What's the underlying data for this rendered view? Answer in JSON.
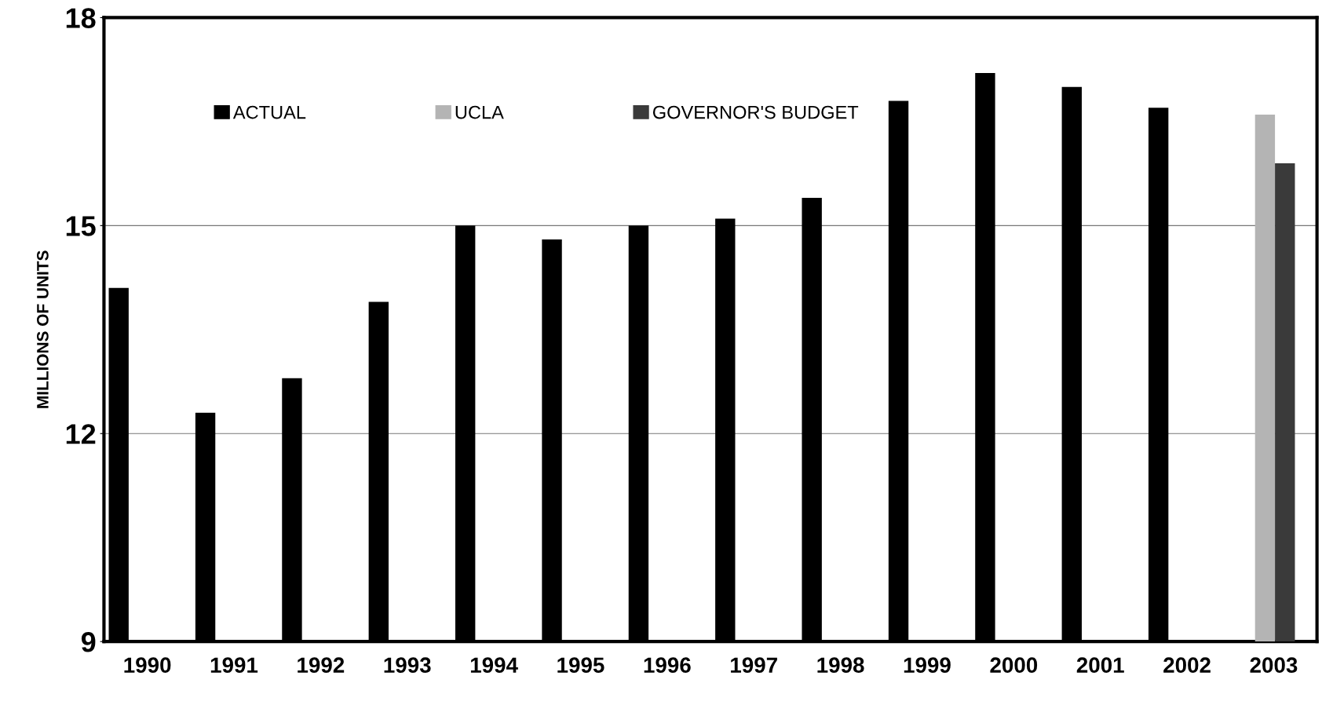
{
  "chart_data": {
    "type": "bar",
    "ylabel": "MILLIONS OF UNITS",
    "categories": [
      "1990",
      "1991",
      "1992",
      "1993",
      "1994",
      "1995",
      "1996",
      "1997",
      "1998",
      "1999",
      "2000",
      "2001",
      "2002",
      "2003"
    ],
    "series": [
      {
        "name": "ACTUAL",
        "color": "#000000",
        "values": [
          14.1,
          12.3,
          12.8,
          13.9,
          15.0,
          14.8,
          15.0,
          15.1,
          15.4,
          16.8,
          17.2,
          17.0,
          16.7,
          null
        ]
      },
      {
        "name": "UCLA",
        "color": "#b4b4b4",
        "values": [
          null,
          null,
          null,
          null,
          null,
          null,
          null,
          null,
          null,
          null,
          null,
          null,
          null,
          16.6
        ]
      },
      {
        "name": "GOVERNOR'S BUDGET",
        "color": "#3a3a3a",
        "values": [
          null,
          null,
          null,
          null,
          null,
          null,
          null,
          null,
          null,
          null,
          null,
          null,
          null,
          15.9
        ]
      }
    ],
    "ylim": [
      9,
      18
    ],
    "yticks": [
      9,
      12,
      15,
      18
    ],
    "grid": "y",
    "legend": "top left"
  }
}
